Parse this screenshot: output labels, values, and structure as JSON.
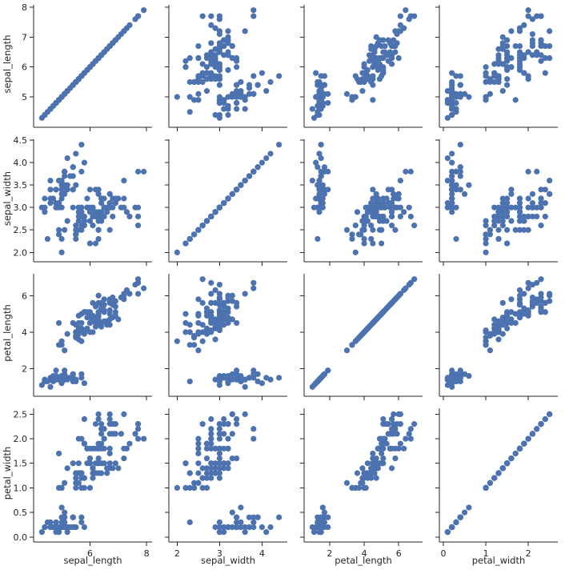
{
  "chart_data": {
    "type": "scatter",
    "layout": "pairgrid",
    "point_color": "#4c72b0",
    "variables": [
      "sepal_length",
      "sepal_width",
      "petal_length",
      "petal_width"
    ],
    "axis_ranges": {
      "sepal_length": [
        4.12,
        8.08
      ],
      "sepal_width": [
        1.88,
        4.52
      ],
      "petal_length": [
        0.705,
        7.195
      ],
      "petal_width": [
        -0.02,
        2.62
      ]
    },
    "ticks": {
      "sepal_length": [
        5,
        6,
        7,
        8
      ],
      "sepal_width": [
        2.0,
        2.5,
        3.0,
        3.5,
        4.0,
        4.5
      ],
      "petal_length": [
        2,
        4,
        6
      ],
      "petal_width": [
        0.0,
        0.5,
        1.0,
        1.5,
        2.0,
        2.5
      ]
    },
    "tick_labels": {
      "sepal_length": [
        "5",
        "6",
        "7",
        "8"
      ],
      "sepal_width": [
        "2.0",
        "2.5",
        "3.0",
        "3.5",
        "4.0",
        "4.5"
      ],
      "petal_length": [
        "2",
        "4",
        "6"
      ],
      "petal_width": [
        "0.0",
        "0.5",
        "1.0",
        "1.5",
        "2.0",
        "2.5"
      ]
    },
    "x_tick_values": {
      "sepal_length": [
        6,
        8
      ],
      "sepal_width": [
        2,
        3,
        4
      ],
      "petal_length": [
        2,
        4,
        6
      ],
      "petal_width": [
        0,
        1,
        2
      ]
    },
    "x_tick_labels": {
      "sepal_length": [
        "6",
        "8"
      ],
      "sepal_width": [
        "2",
        "3",
        "4"
      ],
      "petal_length": [
        "2",
        "4",
        "6"
      ],
      "petal_width": [
        "0",
        "1",
        "2"
      ]
    },
    "points": [
      [
        5.1,
        3.5,
        1.4,
        0.2
      ],
      [
        4.9,
        3.0,
        1.4,
        0.2
      ],
      [
        4.7,
        3.2,
        1.3,
        0.2
      ],
      [
        4.6,
        3.1,
        1.5,
        0.2
      ],
      [
        5.0,
        3.6,
        1.4,
        0.2
      ],
      [
        5.4,
        3.9,
        1.7,
        0.4
      ],
      [
        4.6,
        3.4,
        1.4,
        0.3
      ],
      [
        5.0,
        3.4,
        1.5,
        0.2
      ],
      [
        4.4,
        2.9,
        1.4,
        0.2
      ],
      [
        4.9,
        3.1,
        1.5,
        0.1
      ],
      [
        5.4,
        3.7,
        1.5,
        0.2
      ],
      [
        4.8,
        3.4,
        1.6,
        0.2
      ],
      [
        4.8,
        3.0,
        1.4,
        0.1
      ],
      [
        4.3,
        3.0,
        1.1,
        0.1
      ],
      [
        5.8,
        4.0,
        1.2,
        0.2
      ],
      [
        5.7,
        4.4,
        1.5,
        0.4
      ],
      [
        5.4,
        3.9,
        1.3,
        0.4
      ],
      [
        5.1,
        3.5,
        1.4,
        0.3
      ],
      [
        5.7,
        3.8,
        1.7,
        0.3
      ],
      [
        5.1,
        3.8,
        1.5,
        0.3
      ],
      [
        5.4,
        3.4,
        1.7,
        0.2
      ],
      [
        5.1,
        3.7,
        1.5,
        0.4
      ],
      [
        4.6,
        3.6,
        1.0,
        0.2
      ],
      [
        5.1,
        3.3,
        1.7,
        0.5
      ],
      [
        4.8,
        3.4,
        1.9,
        0.2
      ],
      [
        5.0,
        3.0,
        1.6,
        0.2
      ],
      [
        5.0,
        3.4,
        1.6,
        0.4
      ],
      [
        5.2,
        3.5,
        1.5,
        0.2
      ],
      [
        5.2,
        3.4,
        1.4,
        0.2
      ],
      [
        4.7,
        3.2,
        1.6,
        0.2
      ],
      [
        4.8,
        3.1,
        1.6,
        0.2
      ],
      [
        5.4,
        3.4,
        1.5,
        0.4
      ],
      [
        5.2,
        4.1,
        1.5,
        0.1
      ],
      [
        5.5,
        4.2,
        1.4,
        0.2
      ],
      [
        4.9,
        3.1,
        1.5,
        0.2
      ],
      [
        5.0,
        3.2,
        1.2,
        0.2
      ],
      [
        5.5,
        3.5,
        1.3,
        0.2
      ],
      [
        4.9,
        3.6,
        1.4,
        0.1
      ],
      [
        4.4,
        3.0,
        1.3,
        0.2
      ],
      [
        5.1,
        3.4,
        1.5,
        0.2
      ],
      [
        5.0,
        3.5,
        1.3,
        0.3
      ],
      [
        4.5,
        2.3,
        1.3,
        0.3
      ],
      [
        4.4,
        3.2,
        1.3,
        0.2
      ],
      [
        5.0,
        3.5,
        1.6,
        0.6
      ],
      [
        5.1,
        3.8,
        1.9,
        0.4
      ],
      [
        4.8,
        3.0,
        1.4,
        0.3
      ],
      [
        5.1,
        3.8,
        1.6,
        0.2
      ],
      [
        4.6,
        3.2,
        1.4,
        0.2
      ],
      [
        5.3,
        3.7,
        1.5,
        0.2
      ],
      [
        5.0,
        3.3,
        1.4,
        0.2
      ],
      [
        7.0,
        3.2,
        4.7,
        1.4
      ],
      [
        6.4,
        3.2,
        4.5,
        1.5
      ],
      [
        6.9,
        3.1,
        4.9,
        1.5
      ],
      [
        5.5,
        2.3,
        4.0,
        1.3
      ],
      [
        6.5,
        2.8,
        4.6,
        1.5
      ],
      [
        5.7,
        2.8,
        4.5,
        1.3
      ],
      [
        6.3,
        3.3,
        4.7,
        1.6
      ],
      [
        4.9,
        2.4,
        3.3,
        1.0
      ],
      [
        6.6,
        2.9,
        4.6,
        1.3
      ],
      [
        5.2,
        2.7,
        3.9,
        1.4
      ],
      [
        5.0,
        2.0,
        3.5,
        1.0
      ],
      [
        5.9,
        3.0,
        4.2,
        1.5
      ],
      [
        6.0,
        2.2,
        4.0,
        1.0
      ],
      [
        6.1,
        2.9,
        4.7,
        1.4
      ],
      [
        5.6,
        2.9,
        3.6,
        1.3
      ],
      [
        6.7,
        3.1,
        4.4,
        1.4
      ],
      [
        5.6,
        3.0,
        4.5,
        1.5
      ],
      [
        5.8,
        2.7,
        4.1,
        1.0
      ],
      [
        6.2,
        2.2,
        4.5,
        1.5
      ],
      [
        5.6,
        2.5,
        3.9,
        1.1
      ],
      [
        5.9,
        3.2,
        4.8,
        1.8
      ],
      [
        6.1,
        2.8,
        4.0,
        1.3
      ],
      [
        6.3,
        2.5,
        4.9,
        1.5
      ],
      [
        6.1,
        2.8,
        4.7,
        1.2
      ],
      [
        6.4,
        2.9,
        4.3,
        1.3
      ],
      [
        6.6,
        3.0,
        4.4,
        1.4
      ],
      [
        6.8,
        2.8,
        4.8,
        1.4
      ],
      [
        6.7,
        3.0,
        5.0,
        1.7
      ],
      [
        6.0,
        2.9,
        4.5,
        1.5
      ],
      [
        5.7,
        2.6,
        3.5,
        1.0
      ],
      [
        5.5,
        2.4,
        3.8,
        1.1
      ],
      [
        5.5,
        2.4,
        3.7,
        1.0
      ],
      [
        5.8,
        2.7,
        3.9,
        1.2
      ],
      [
        6.0,
        2.7,
        5.1,
        1.6
      ],
      [
        5.4,
        3.0,
        4.5,
        1.5
      ],
      [
        6.0,
        3.4,
        4.5,
        1.6
      ],
      [
        6.7,
        3.1,
        4.7,
        1.5
      ],
      [
        6.3,
        2.3,
        4.4,
        1.3
      ],
      [
        5.6,
        3.0,
        4.1,
        1.3
      ],
      [
        5.5,
        2.5,
        4.0,
        1.3
      ],
      [
        5.5,
        2.6,
        4.4,
        1.2
      ],
      [
        6.1,
        3.0,
        4.6,
        1.4
      ],
      [
        5.8,
        2.6,
        4.0,
        1.2
      ],
      [
        5.0,
        2.3,
        3.3,
        1.0
      ],
      [
        5.6,
        2.7,
        4.2,
        1.3
      ],
      [
        5.7,
        3.0,
        4.2,
        1.2
      ],
      [
        5.7,
        2.9,
        4.2,
        1.3
      ],
      [
        6.2,
        2.9,
        4.3,
        1.3
      ],
      [
        5.1,
        2.5,
        3.0,
        1.1
      ],
      [
        5.7,
        2.8,
        4.1,
        1.3
      ],
      [
        6.3,
        3.3,
        6.0,
        2.5
      ],
      [
        5.8,
        2.7,
        5.1,
        1.9
      ],
      [
        7.1,
        3.0,
        5.9,
        2.1
      ],
      [
        6.3,
        2.9,
        5.6,
        1.8
      ],
      [
        6.5,
        3.0,
        5.8,
        2.2
      ],
      [
        7.6,
        3.0,
        6.6,
        2.1
      ],
      [
        4.9,
        2.5,
        4.5,
        1.7
      ],
      [
        7.3,
        2.9,
        6.3,
        1.8
      ],
      [
        6.7,
        2.5,
        5.8,
        1.8
      ],
      [
        7.2,
        3.6,
        6.1,
        2.5
      ],
      [
        6.5,
        3.2,
        5.1,
        2.0
      ],
      [
        6.4,
        2.7,
        5.3,
        1.9
      ],
      [
        6.8,
        3.0,
        5.5,
        2.1
      ],
      [
        5.7,
        2.5,
        5.0,
        2.0
      ],
      [
        5.8,
        2.8,
        5.1,
        2.4
      ],
      [
        6.4,
        3.2,
        5.3,
        2.3
      ],
      [
        6.5,
        3.0,
        5.5,
        1.8
      ],
      [
        7.7,
        3.8,
        6.7,
        2.2
      ],
      [
        7.7,
        2.6,
        6.9,
        2.3
      ],
      [
        6.0,
        2.2,
        5.0,
        1.5
      ],
      [
        6.9,
        3.2,
        5.7,
        2.3
      ],
      [
        5.6,
        2.8,
        4.9,
        2.0
      ],
      [
        7.7,
        2.8,
        6.7,
        2.0
      ],
      [
        6.3,
        2.7,
        4.9,
        1.8
      ],
      [
        6.7,
        3.3,
        5.7,
        2.1
      ],
      [
        7.2,
        3.2,
        6.0,
        1.8
      ],
      [
        6.2,
        2.8,
        4.8,
        1.8
      ],
      [
        6.1,
        3.0,
        4.9,
        1.8
      ],
      [
        6.4,
        2.8,
        5.6,
        2.1
      ],
      [
        7.2,
        3.0,
        5.8,
        1.6
      ],
      [
        7.4,
        2.8,
        6.1,
        1.9
      ],
      [
        7.9,
        3.8,
        6.4,
        2.0
      ],
      [
        6.4,
        2.8,
        5.6,
        2.2
      ],
      [
        6.3,
        2.8,
        5.1,
        1.5
      ],
      [
        6.1,
        2.6,
        5.6,
        1.4
      ],
      [
        7.7,
        3.0,
        6.1,
        2.3
      ],
      [
        6.3,
        3.4,
        5.6,
        2.4
      ],
      [
        6.4,
        3.1,
        5.5,
        1.8
      ],
      [
        6.0,
        3.0,
        4.8,
        1.8
      ],
      [
        6.9,
        3.1,
        5.4,
        2.1
      ],
      [
        6.7,
        3.1,
        5.6,
        2.4
      ],
      [
        6.9,
        3.1,
        5.1,
        2.3
      ],
      [
        5.8,
        2.7,
        5.1,
        1.9
      ],
      [
        6.8,
        3.2,
        5.9,
        2.3
      ],
      [
        6.7,
        3.3,
        5.7,
        2.5
      ],
      [
        6.7,
        3.0,
        5.2,
        2.3
      ],
      [
        6.3,
        2.5,
        5.0,
        1.9
      ],
      [
        6.5,
        3.0,
        5.2,
        2.0
      ],
      [
        6.2,
        3.4,
        5.4,
        2.3
      ],
      [
        5.9,
        3.0,
        5.1,
        1.8
      ]
    ]
  }
}
